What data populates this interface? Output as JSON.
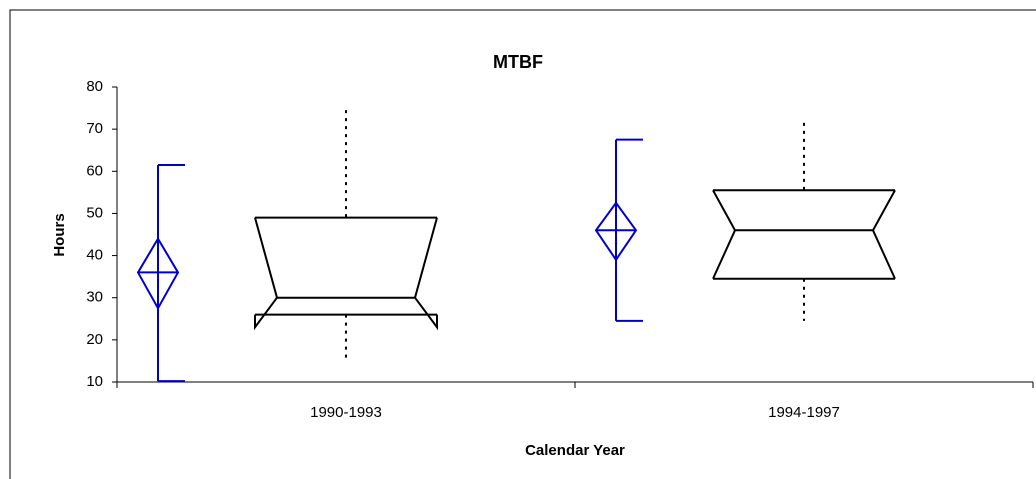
{
  "chart_data": {
    "type": "box",
    "title": "MTBF",
    "xlabel": "Calendar Year",
    "ylabel": "Hours",
    "categories": [
      "1990-1993",
      "1994-1997"
    ],
    "ylim": [
      10,
      80
    ],
    "yticks": [
      10,
      20,
      30,
      40,
      50,
      60,
      70,
      80
    ],
    "box_color": "#000000",
    "mean_color": "#0000cc",
    "boxes": [
      {
        "whisker_low": 15.5,
        "q1": 26,
        "notch_low": 23,
        "median": 30,
        "notch_high": 49,
        "q3": 49,
        "whisker_high": 74.5
      },
      {
        "whisker_low": 24.5,
        "q1": 34.5,
        "notch_low": 34.5,
        "median": 46,
        "notch_high": 55.5,
        "q3": 55.5,
        "whisker_high": 71.5
      }
    ],
    "means": [
      {
        "low": 10.2,
        "ci_low": 27.5,
        "mean": 36,
        "ci_high": 44,
        "high": 61.5
      },
      {
        "low": 24.5,
        "ci_low": 39,
        "mean": 46,
        "ci_high": 52.5,
        "high": 67.5
      }
    ]
  }
}
